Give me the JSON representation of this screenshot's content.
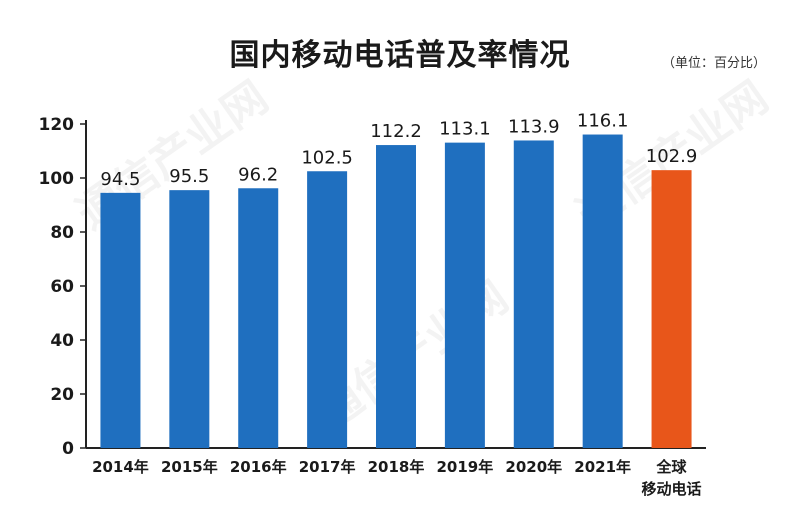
{
  "title": "国内移动电话普及率情况",
  "unit_label": "（单位：百分比）",
  "watermark": "通信产业网",
  "colors": {
    "domestic_bar": "#1f6fbf",
    "global_bar": "#e8561a",
    "axis": "#222222",
    "text": "#1a1a1a"
  },
  "chart_data": {
    "type": "bar",
    "title": "国内移动电话普及率情况",
    "categories": [
      "2014年",
      "2015年",
      "2016年",
      "2017年",
      "2018年",
      "2019年",
      "2020年",
      "2021年",
      "全球移动电话"
    ],
    "category_display": [
      [
        "2014年"
      ],
      [
        "2015年"
      ],
      [
        "2016年"
      ],
      [
        "2017年"
      ],
      [
        "2018年"
      ],
      [
        "2019年"
      ],
      [
        "2020年"
      ],
      [
        "2021年"
      ],
      [
        "全球",
        "移动电话"
      ]
    ],
    "values": [
      94.5,
      95.5,
      96.2,
      102.5,
      112.2,
      113.1,
      113.9,
      116.1,
      102.9
    ],
    "value_labels": [
      "94.5",
      "95.5",
      "96.2",
      "102.5",
      "112.2",
      "113.1",
      "113.9",
      "116.1",
      "102.9"
    ],
    "highlight_index": 8,
    "ylim": [
      0,
      120
    ],
    "yticks": [
      0,
      20,
      40,
      60,
      80,
      100,
      120
    ],
    "xlabel": "",
    "ylabel": "",
    "grid": false,
    "legend": "none"
  }
}
